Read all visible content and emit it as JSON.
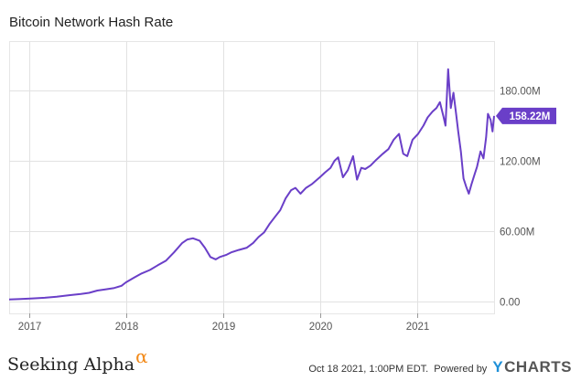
{
  "title": "Bitcoin Network Hash Rate",
  "chart_data": {
    "type": "line",
    "title": "Bitcoin Network Hash Rate",
    "xlabel": "",
    "ylabel": "",
    "x_ticks": [
      "2017",
      "2018",
      "2019",
      "2020",
      "2021"
    ],
    "y_ticks": [
      "0.00",
      "60.00M",
      "120.00M",
      "180.00M"
    ],
    "ylim": [
      -10,
      222
    ],
    "xlim": [
      "2016-10-18",
      "2021-10-18"
    ],
    "grid": true,
    "last_value_label": "158.22M",
    "last_value": 158.22,
    "series": [
      {
        "color": "#6a3fc8",
        "points": [
          [
            "2016-10-18",
            1.9
          ],
          [
            "2016-12-01",
            2.3
          ],
          [
            "2017-01-15",
            2.8
          ],
          [
            "2017-03-01",
            3.3
          ],
          [
            "2017-04-15",
            4.2
          ],
          [
            "2017-06-01",
            5.5
          ],
          [
            "2017-07-15",
            6.5
          ],
          [
            "2017-08-15",
            7.5
          ],
          [
            "2017-09-15",
            9.5
          ],
          [
            "2017-10-15",
            10.5
          ],
          [
            "2017-11-15",
            11.5
          ],
          [
            "2017-12-15",
            13.5
          ],
          [
            "2018-01-01",
            16.5
          ],
          [
            "2018-02-01",
            20.5
          ],
          [
            "2018-03-01",
            24
          ],
          [
            "2018-04-01",
            27
          ],
          [
            "2018-05-01",
            31
          ],
          [
            "2018-06-01",
            35
          ],
          [
            "2018-07-01",
            42
          ],
          [
            "2018-08-01",
            50
          ],
          [
            "2018-08-20",
            53
          ],
          [
            "2018-09-10",
            54
          ],
          [
            "2018-10-05",
            52
          ],
          [
            "2018-10-25",
            46
          ],
          [
            "2018-11-15",
            38
          ],
          [
            "2018-12-05",
            36
          ],
          [
            "2018-12-20",
            38
          ],
          [
            "2019-01-15",
            40
          ],
          [
            "2019-02-01",
            42
          ],
          [
            "2019-03-01",
            44
          ],
          [
            "2019-04-01",
            46
          ],
          [
            "2019-04-25",
            50
          ],
          [
            "2019-05-15",
            55
          ],
          [
            "2019-06-05",
            59
          ],
          [
            "2019-06-25",
            66
          ],
          [
            "2019-07-15",
            72
          ],
          [
            "2019-08-05",
            78
          ],
          [
            "2019-08-25",
            88
          ],
          [
            "2019-09-15",
            95
          ],
          [
            "2019-10-01",
            97
          ],
          [
            "2019-10-20",
            92
          ],
          [
            "2019-11-10",
            97
          ],
          [
            "2019-12-01",
            100
          ],
          [
            "2020-01-01",
            106
          ],
          [
            "2020-01-20",
            110
          ],
          [
            "2020-02-10",
            114
          ],
          [
            "2020-02-25",
            120
          ],
          [
            "2020-03-10",
            123
          ],
          [
            "2020-03-28",
            106
          ],
          [
            "2020-04-15",
            112
          ],
          [
            "2020-05-05",
            124
          ],
          [
            "2020-05-20",
            104
          ],
          [
            "2020-06-05",
            114
          ],
          [
            "2020-06-20",
            113
          ],
          [
            "2020-07-10",
            116
          ],
          [
            "2020-08-01",
            121
          ],
          [
            "2020-08-25",
            126
          ],
          [
            "2020-09-15",
            130
          ],
          [
            "2020-10-05",
            138
          ],
          [
            "2020-10-25",
            143
          ],
          [
            "2020-11-10",
            126
          ],
          [
            "2020-11-25",
            124
          ],
          [
            "2020-12-15",
            138
          ],
          [
            "2021-01-05",
            143
          ],
          [
            "2021-01-25",
            150
          ],
          [
            "2021-02-10",
            157
          ],
          [
            "2021-02-28",
            162
          ],
          [
            "2021-03-15",
            165
          ],
          [
            "2021-03-28",
            170
          ],
          [
            "2021-04-10",
            158
          ],
          [
            "2021-04-18",
            150
          ],
          [
            "2021-04-28",
            198
          ],
          [
            "2021-05-08",
            165
          ],
          [
            "2021-05-18",
            178
          ],
          [
            "2021-05-28",
            160
          ],
          [
            "2021-06-05",
            145
          ],
          [
            "2021-06-15",
            128
          ],
          [
            "2021-06-25",
            105
          ],
          [
            "2021-07-05",
            98
          ],
          [
            "2021-07-15",
            92
          ],
          [
            "2021-07-25",
            100
          ],
          [
            "2021-08-05",
            108
          ],
          [
            "2021-08-15",
            115
          ],
          [
            "2021-08-28",
            128
          ],
          [
            "2021-09-08",
            122
          ],
          [
            "2021-09-18",
            140
          ],
          [
            "2021-09-25",
            160
          ],
          [
            "2021-10-05",
            155
          ],
          [
            "2021-10-12",
            145
          ],
          [
            "2021-10-18",
            158.22
          ]
        ]
      }
    ]
  },
  "footer": {
    "brand": "Seeking Alpha",
    "brand_mark": "α",
    "timestamp": "Oct 18 2021, 1:00PM EDT.",
    "powered_by": "Powered by",
    "logo_y": "Y",
    "logo_rest": "CHARTS"
  },
  "colors": {
    "line": "#6a3fc8",
    "badge": "#6a3fc8",
    "grid": "#e2e2e2",
    "brand_alpha": "#f28a1a",
    "ycharts_y": "#1e90d8"
  }
}
